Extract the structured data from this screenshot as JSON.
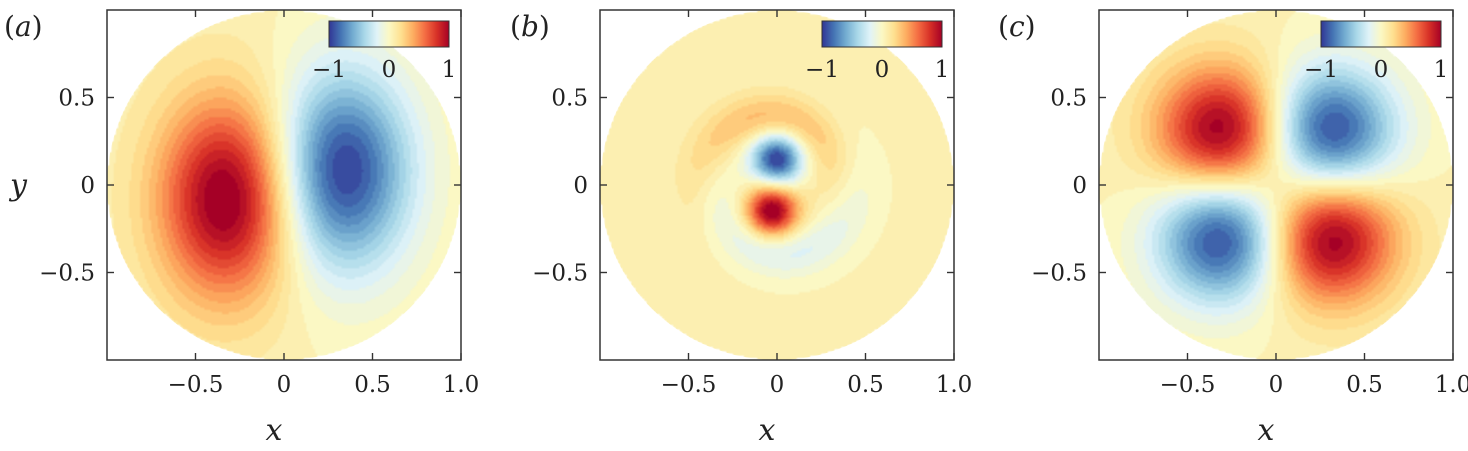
{
  "chart_data": [
    {
      "type": "heatmap",
      "panel_label": "(a)",
      "xlabel": "x",
      "ylabel": "y",
      "xlim": [
        -1,
        1
      ],
      "ylim": [
        -1,
        1
      ],
      "xticks": [
        -0.5,
        0,
        0.5,
        1.0
      ],
      "xtick_labels": [
        "−0.5",
        "0",
        "0.5",
        "1.0"
      ],
      "yticks": [
        0.5,
        0,
        -0.5
      ],
      "ytick_labels": [
        "0.5",
        "0",
        "−0.5"
      ],
      "domain": "unit disk",
      "colorbar": {
        "range": [
          -1,
          1
        ],
        "ticks": [
          "−1",
          "0",
          "1"
        ],
        "placement": "top-right",
        "colormap": "RdYlBu_r"
      },
      "features": [
        {
          "kind": "maximum",
          "x": -0.32,
          "y": -0.08,
          "value": 1.0
        },
        {
          "kind": "minimum",
          "x": 0.33,
          "y": 0.08,
          "value": -1.0
        }
      ]
    },
    {
      "type": "heatmap",
      "panel_label": "(b)",
      "xlabel": "x",
      "ylabel": "",
      "xlim": [
        -1,
        1
      ],
      "ylim": [
        -1,
        1
      ],
      "xticks": [
        -0.5,
        0,
        0.5,
        1.0
      ],
      "xtick_labels": [
        "−0.5",
        "0",
        "0.5",
        "1.0"
      ],
      "yticks": [
        0.5,
        0,
        -0.5
      ],
      "ytick_labels": [
        "0.5",
        "0",
        "−0.5"
      ],
      "domain": "unit disk",
      "colorbar": {
        "range": [
          -1,
          1
        ],
        "ticks": [
          "−1",
          "0",
          "1"
        ],
        "placement": "top-right",
        "colormap": "RdYlBu_r"
      },
      "features": [
        {
          "kind": "minimum",
          "x": 0.0,
          "y": 0.15,
          "value": -1.0
        },
        {
          "kind": "maximum",
          "x": -0.03,
          "y": -0.15,
          "value": 1.0
        },
        {
          "kind": "spiral-arm",
          "sign": 1,
          "value": 0.3
        },
        {
          "kind": "spiral-arm",
          "sign": -1,
          "value": -0.25
        }
      ]
    },
    {
      "type": "heatmap",
      "panel_label": "(c)",
      "xlabel": "x",
      "ylabel": "",
      "xlim": [
        -1,
        1
      ],
      "ylim": [
        -1,
        1
      ],
      "xticks": [
        -0.5,
        0,
        0.5,
        1.0
      ],
      "xtick_labels": [
        "−0.5",
        "0",
        "0.5",
        "1.0"
      ],
      "yticks": [
        0.5,
        0,
        -0.5
      ],
      "ytick_labels": [
        "0.5",
        "0",
        "−0.5"
      ],
      "domain": "unit disk",
      "colorbar": {
        "range": [
          -1,
          1
        ],
        "ticks": [
          "−1",
          "0",
          "1"
        ],
        "placement": "top-right",
        "colormap": "RdYlBu_r"
      },
      "features": [
        {
          "kind": "maximum",
          "x": -0.3,
          "y": 0.3,
          "value": 1.0
        },
        {
          "kind": "minimum",
          "x": 0.3,
          "y": 0.3,
          "value": -1.0
        },
        {
          "kind": "minimum",
          "x": -0.3,
          "y": -0.3,
          "value": -1.0
        },
        {
          "kind": "maximum",
          "x": 0.3,
          "y": -0.3,
          "value": 1.0
        }
      ]
    }
  ],
  "colors": {
    "background": "#ffffff",
    "axis": "#333333",
    "outside_disk": "#eef0e0",
    "colormap_stops": [
      "#313695",
      "#4575b4",
      "#74add1",
      "#abd9e9",
      "#e0f3f8",
      "#fbf8c4",
      "#fee090",
      "#fdae61",
      "#f46d43",
      "#d73027",
      "#a50026"
    ]
  }
}
